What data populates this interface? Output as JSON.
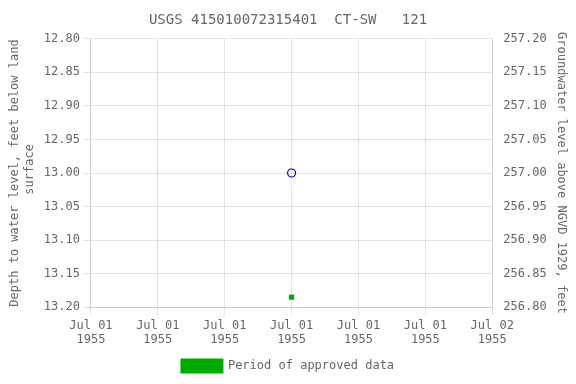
{
  "chart_data": {
    "type": "scatter",
    "title": "USGS 415010072315401  CT-SW   121",
    "ylabel": "Depth to water level, feet below land\n surface",
    "y2label": "Groundwater level above NGVD 1929, feet",
    "categories": [
      "Jul 01\n1955",
      "Jul 01\n1955",
      "Jul 01\n1955",
      "Jul 01\n1955",
      "Jul 01\n1955",
      "Jul 01\n1955",
      "Jul 02\n1955"
    ],
    "series": [
      {
        "color": "#0000bb",
        "marker": "open_circle",
        "values": [
          null,
          null,
          null,
          13.0,
          null,
          null,
          null
        ]
      },
      {
        "name": "Period of approved data",
        "color": "#00aa00",
        "marker": "square",
        "values": [
          null,
          null,
          null,
          13.185,
          null,
          null,
          null
        ]
      }
    ],
    "ylim": [
      13.2,
      12.8
    ],
    "yticks": [
      {
        "value": 12.8,
        "label": "12.80"
      },
      {
        "value": 12.85,
        "label": "12.85"
      },
      {
        "value": 12.9,
        "label": "12.90"
      },
      {
        "value": 12.95,
        "label": "12.95"
      },
      {
        "value": 13.0,
        "label": "13.00"
      },
      {
        "value": 13.05,
        "label": "13.05"
      },
      {
        "value": 13.1,
        "label": "13.10"
      },
      {
        "value": 13.15,
        "label": "13.15"
      },
      {
        "value": 13.2,
        "label": "13.20"
      }
    ],
    "y2lim": [
      256.8,
      257.2
    ],
    "y2ticks": [
      {
        "value": 257.2,
        "label": "257.20"
      },
      {
        "value": 257.15,
        "label": "257.15"
      },
      {
        "value": 257.1,
        "label": "257.10"
      },
      {
        "value": 257.05,
        "label": "257.05"
      },
      {
        "value": 257.0,
        "label": "257.00"
      },
      {
        "value": 256.95,
        "label": "256.95"
      },
      {
        "value": 256.9,
        "label": "256.90"
      },
      {
        "value": 256.85,
        "label": "256.85"
      },
      {
        "value": 256.8,
        "label": "256.80"
      }
    ],
    "grid": true,
    "legend": "bottom"
  }
}
